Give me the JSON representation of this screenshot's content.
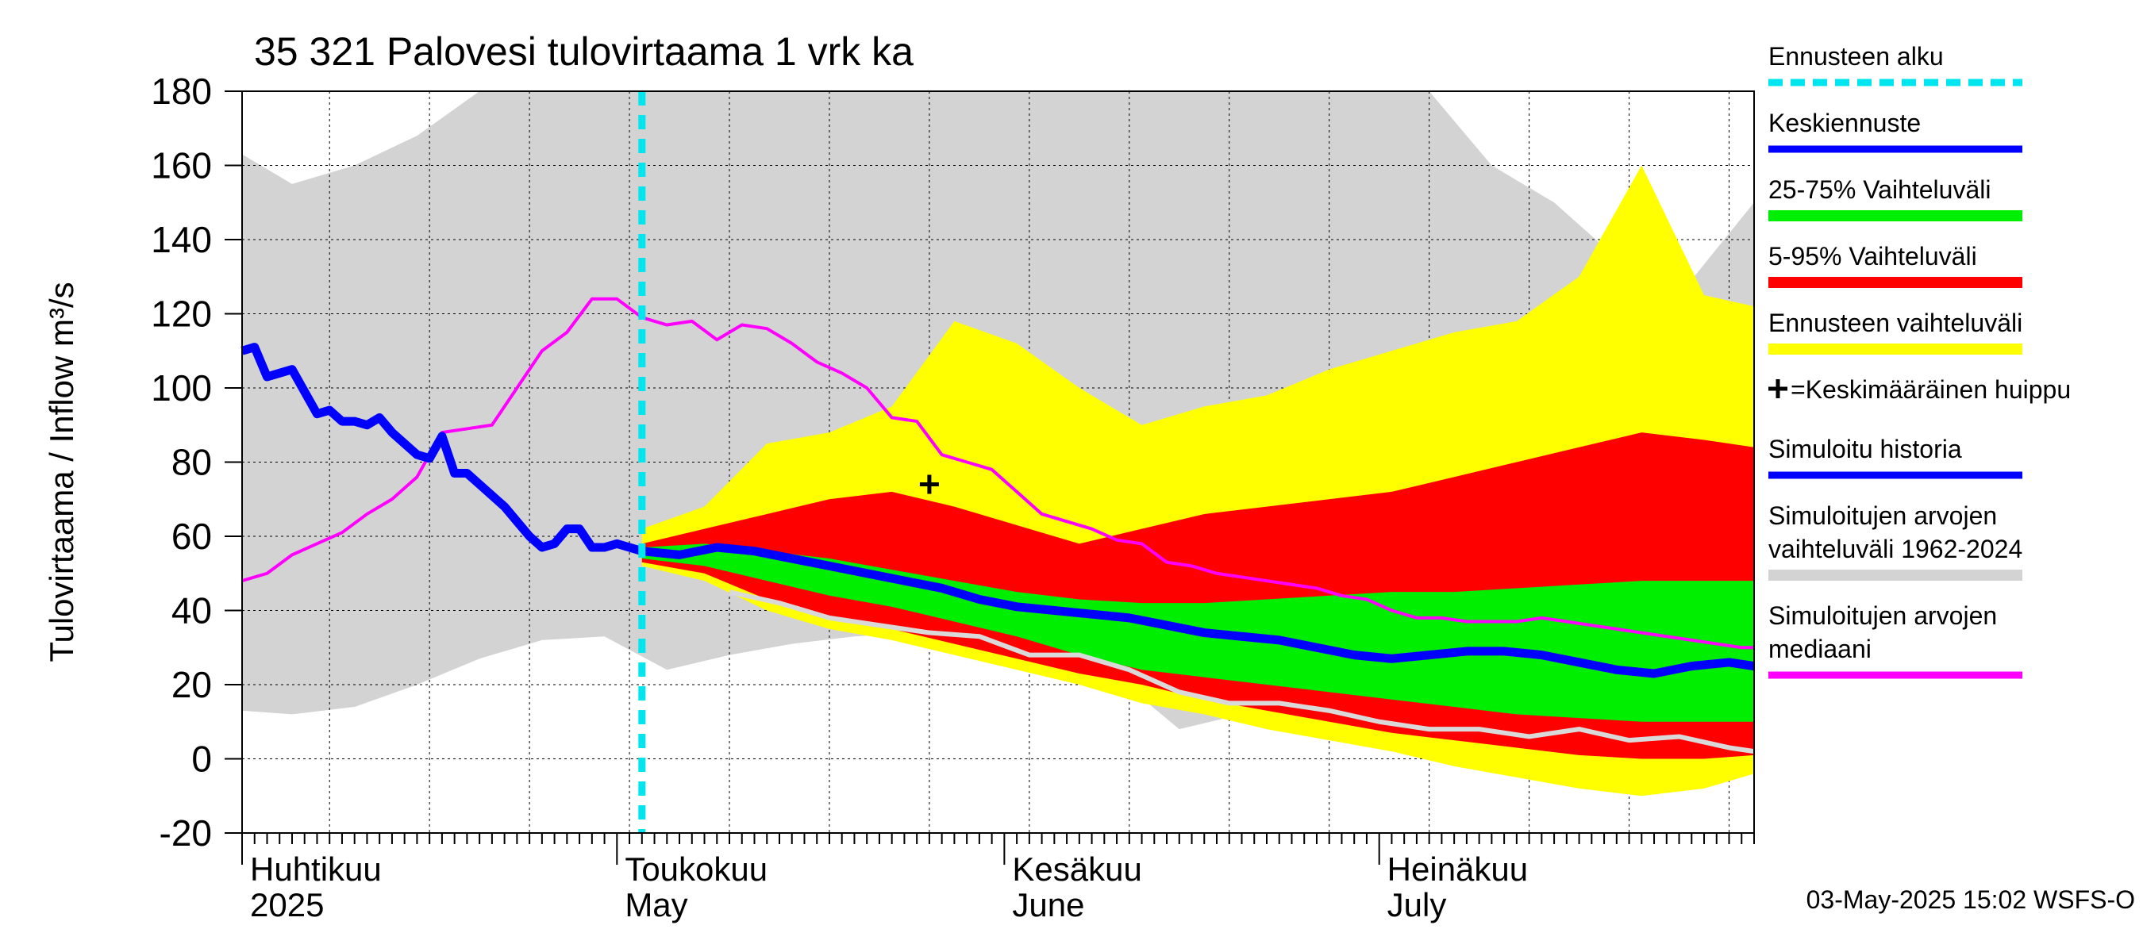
{
  "chart_data": {
    "type": "area",
    "title": "35 321 Palovesi tulovirtaama 1 vrk ka",
    "ylabel": "Tulovirtaama / Inflow   m³/s",
    "ylim": [
      -20,
      180
    ],
    "yticks": [
      -20,
      0,
      20,
      40,
      60,
      80,
      100,
      120,
      140,
      160,
      180
    ],
    "xlim": [
      "2025-04-01",
      "2025-07-31"
    ],
    "forecast_start": "2025-05-03",
    "grid": true,
    "x_month_labels": [
      {
        "date": "2025-04-01",
        "fi": "Huhtikuu",
        "en": "2025"
      },
      {
        "date": "2025-05-01",
        "fi": "Toukokuu",
        "en": "May"
      },
      {
        "date": "2025-06-01",
        "fi": "Kesäkuu",
        "en": "June"
      },
      {
        "date": "2025-07-01",
        "fi": "Heinäkuu",
        "en": "July"
      }
    ],
    "timestamp": "03-May-2025 15:02 WSFS-O",
    "legend_position": "right",
    "legend": [
      {
        "label": "Ennusteen alku",
        "color": "#00e5ee",
        "style": "dashed"
      },
      {
        "label": "Keskiennuste",
        "color": "#0000ff",
        "style": "line"
      },
      {
        "label": "25-75% Vaihteluväli",
        "color": "#00ee00",
        "style": "band"
      },
      {
        "label": "5-95% Vaihteluväli",
        "color": "#ff0000",
        "style": "band"
      },
      {
        "label": "Ennusteen vaihteluväli",
        "color": "#ffff00",
        "style": "band"
      },
      {
        "label": "=Keskimääräinen huippu",
        "color": "#000000",
        "style": "plus"
      },
      {
        "label": "Simuloitu historia",
        "color": "#0000ff",
        "style": "line"
      },
      {
        "label": "Simuloitujen arvojen vaihteluväli 1962-2024",
        "color": "#d3d3d3",
        "style": "band"
      },
      {
        "label": "Simuloitujen arvojen mediaani",
        "color": "#ff00ff",
        "style": "line"
      }
    ],
    "mean_peak": {
      "date": "2025-05-26",
      "value": 74
    },
    "series": {
      "historical_range": {
        "dates": [
          "2025-04-01",
          "2025-04-05",
          "2025-04-10",
          "2025-04-15",
          "2025-04-20",
          "2025-04-25",
          "2025-04-30",
          "2025-05-05",
          "2025-05-10",
          "2025-05-15",
          "2025-05-20",
          "2025-05-25",
          "2025-05-31",
          "2025-06-05",
          "2025-06-10",
          "2025-06-15",
          "2025-06-20",
          "2025-06-25",
          "2025-06-30",
          "2025-07-05",
          "2025-07-10",
          "2025-07-15",
          "2025-07-20",
          "2025-07-25",
          "2025-07-31"
        ],
        "low": [
          13,
          12,
          14,
          20,
          27,
          32,
          33,
          24,
          28,
          31,
          33,
          34,
          30,
          27,
          22,
          8,
          12,
          8,
          8,
          3,
          5,
          4,
          2,
          0,
          2
        ],
        "high": [
          163,
          155,
          160,
          168,
          180,
          180,
          180,
          180,
          180,
          180,
          180,
          180,
          180,
          180,
          180,
          180,
          180,
          180,
          180,
          180,
          160,
          150,
          135,
          125,
          150
        ]
      },
      "forecast_range": {
        "dates": [
          "2025-05-03",
          "2025-05-08",
          "2025-05-13",
          "2025-05-18",
          "2025-05-23",
          "2025-05-28",
          "2025-06-02",
          "2025-06-07",
          "2025-06-12",
          "2025-06-17",
          "2025-06-22",
          "2025-06-27",
          "2025-07-02",
          "2025-07-07",
          "2025-07-12",
          "2025-07-17",
          "2025-07-22",
          "2025-07-27",
          "2025-07-31"
        ],
        "low": [
          52,
          48,
          40,
          35,
          32,
          28,
          24,
          20,
          15,
          12,
          8,
          5,
          2,
          -2,
          -5,
          -8,
          -10,
          -8,
          -4
        ],
        "high": [
          62,
          68,
          85,
          88,
          95,
          118,
          112,
          100,
          90,
          95,
          98,
          105,
          110,
          115,
          118,
          130,
          160,
          125,
          122
        ]
      },
      "p5_95": {
        "dates": [
          "2025-05-03",
          "2025-05-08",
          "2025-05-13",
          "2025-05-18",
          "2025-05-23",
          "2025-05-28",
          "2025-06-02",
          "2025-06-07",
          "2025-06-12",
          "2025-06-17",
          "2025-06-22",
          "2025-06-27",
          "2025-07-02",
          "2025-07-07",
          "2025-07-12",
          "2025-07-17",
          "2025-07-22",
          "2025-07-27",
          "2025-07-31"
        ],
        "low": [
          53,
          50,
          43,
          38,
          35,
          31,
          27,
          23,
          20,
          16,
          13,
          10,
          7,
          5,
          3,
          1,
          0,
          0,
          1
        ],
        "high": [
          58,
          62,
          66,
          70,
          72,
          68,
          63,
          58,
          62,
          66,
          68,
          70,
          72,
          76,
          80,
          84,
          88,
          86,
          84
        ]
      },
      "p25_75": {
        "dates": [
          "2025-05-03",
          "2025-05-08",
          "2025-05-13",
          "2025-05-18",
          "2025-05-23",
          "2025-05-28",
          "2025-06-02",
          "2025-06-07",
          "2025-06-12",
          "2025-06-17",
          "2025-06-22",
          "2025-06-27",
          "2025-07-02",
          "2025-07-07",
          "2025-07-12",
          "2025-07-17",
          "2025-07-22",
          "2025-07-27",
          "2025-07-31"
        ],
        "low": [
          54,
          52,
          48,
          44,
          41,
          37,
          33,
          28,
          24,
          22,
          20,
          18,
          16,
          14,
          12,
          11,
          10,
          10,
          10
        ],
        "high": [
          57,
          58,
          56,
          54,
          51,
          48,
          45,
          43,
          42,
          42,
          43,
          44,
          45,
          45,
          46,
          47,
          48,
          48,
          48
        ]
      },
      "mean_forecast": {
        "dates": [
          "2025-05-03",
          "2025-05-06",
          "2025-05-09",
          "2025-05-12",
          "2025-05-15",
          "2025-05-18",
          "2025-05-21",
          "2025-05-24",
          "2025-05-27",
          "2025-05-30",
          "2025-06-02",
          "2025-06-05",
          "2025-06-08",
          "2025-06-11",
          "2025-06-14",
          "2025-06-17",
          "2025-06-20",
          "2025-06-23",
          "2025-06-26",
          "2025-06-29",
          "2025-07-02",
          "2025-07-05",
          "2025-07-08",
          "2025-07-11",
          "2025-07-14",
          "2025-07-17",
          "2025-07-20",
          "2025-07-23",
          "2025-07-26",
          "2025-07-29",
          "2025-07-31"
        ],
        "values": [
          56,
          55,
          57,
          56,
          54,
          52,
          50,
          48,
          46,
          43,
          41,
          40,
          39,
          38,
          36,
          34,
          33,
          32,
          30,
          28,
          27,
          28,
          29,
          29,
          28,
          26,
          24,
          23,
          25,
          26,
          25
        ]
      },
      "simulated_history": {
        "dates": [
          "2025-04-01",
          "2025-04-02",
          "2025-04-03",
          "2025-04-04",
          "2025-04-05",
          "2025-04-06",
          "2025-04-07",
          "2025-04-08",
          "2025-04-09",
          "2025-04-10",
          "2025-04-11",
          "2025-04-12",
          "2025-04-13",
          "2025-04-14",
          "2025-04-15",
          "2025-04-16",
          "2025-04-17",
          "2025-04-18",
          "2025-04-19",
          "2025-04-20",
          "2025-04-21",
          "2025-04-22",
          "2025-04-23",
          "2025-04-24",
          "2025-04-25",
          "2025-04-26",
          "2025-04-27",
          "2025-04-28",
          "2025-04-29",
          "2025-04-30",
          "2025-05-01",
          "2025-05-02",
          "2025-05-03"
        ],
        "values": [
          110,
          111,
          103,
          104,
          105,
          99,
          93,
          94,
          91,
          91,
          90,
          92,
          88,
          85,
          82,
          81,
          87,
          77,
          77,
          74,
          71,
          68,
          64,
          60,
          57,
          58,
          62,
          62,
          57,
          57,
          58,
          57,
          56
        ]
      },
      "median": {
        "dates": [
          "2025-04-01",
          "2025-04-03",
          "2025-04-05",
          "2025-04-07",
          "2025-04-09",
          "2025-04-11",
          "2025-04-13",
          "2025-04-15",
          "2025-04-17",
          "2025-04-19",
          "2025-04-21",
          "2025-04-23",
          "2025-04-25",
          "2025-04-27",
          "2025-04-29",
          "2025-05-01",
          "2025-05-03",
          "2025-05-05",
          "2025-05-07",
          "2025-05-09",
          "2025-05-11",
          "2025-05-13",
          "2025-05-15",
          "2025-05-17",
          "2025-05-19",
          "2025-05-21",
          "2025-05-23",
          "2025-05-25",
          "2025-05-27",
          "2025-05-29",
          "2025-05-31",
          "2025-06-02",
          "2025-06-04",
          "2025-06-06",
          "2025-06-08",
          "2025-06-10",
          "2025-06-12",
          "2025-06-14",
          "2025-06-16",
          "2025-06-18",
          "2025-06-20",
          "2025-06-22",
          "2025-06-24",
          "2025-06-26",
          "2025-06-28",
          "2025-06-30",
          "2025-07-02",
          "2025-07-04",
          "2025-07-06",
          "2025-07-08",
          "2025-07-10",
          "2025-07-12",
          "2025-07-14",
          "2025-07-16",
          "2025-07-18",
          "2025-07-20",
          "2025-07-22",
          "2025-07-24",
          "2025-07-26",
          "2025-07-28",
          "2025-07-30",
          "2025-07-31"
        ],
        "values": [
          48,
          50,
          55,
          58,
          61,
          66,
          70,
          76,
          88,
          89,
          90,
          100,
          110,
          115,
          124,
          124,
          119,
          117,
          118,
          113,
          117,
          116,
          112,
          107,
          104,
          100,
          92,
          91,
          82,
          80,
          78,
          72,
          66,
          64,
          62,
          59,
          58,
          53,
          52,
          50,
          49,
          48,
          47,
          46,
          44,
          43,
          40,
          38,
          38,
          37,
          37,
          37,
          38,
          37,
          36,
          35,
          34,
          33,
          32,
          31,
          30,
          30
        ]
      },
      "sample_trace": {
        "dates": [
          "2025-05-10",
          "2025-05-14",
          "2025-05-18",
          "2025-05-22",
          "2025-05-26",
          "2025-05-30",
          "2025-06-03",
          "2025-06-07",
          "2025-06-11",
          "2025-06-15",
          "2025-06-19",
          "2025-06-23",
          "2025-06-27",
          "2025-07-01",
          "2025-07-05",
          "2025-07-09",
          "2025-07-13",
          "2025-07-17",
          "2025-07-21",
          "2025-07-25",
          "2025-07-29",
          "2025-07-31"
        ],
        "values": [
          45,
          42,
          38,
          36,
          34,
          33,
          28,
          28,
          24,
          18,
          15,
          15,
          13,
          10,
          8,
          8,
          6,
          8,
          5,
          6,
          3,
          2
        ]
      }
    }
  }
}
